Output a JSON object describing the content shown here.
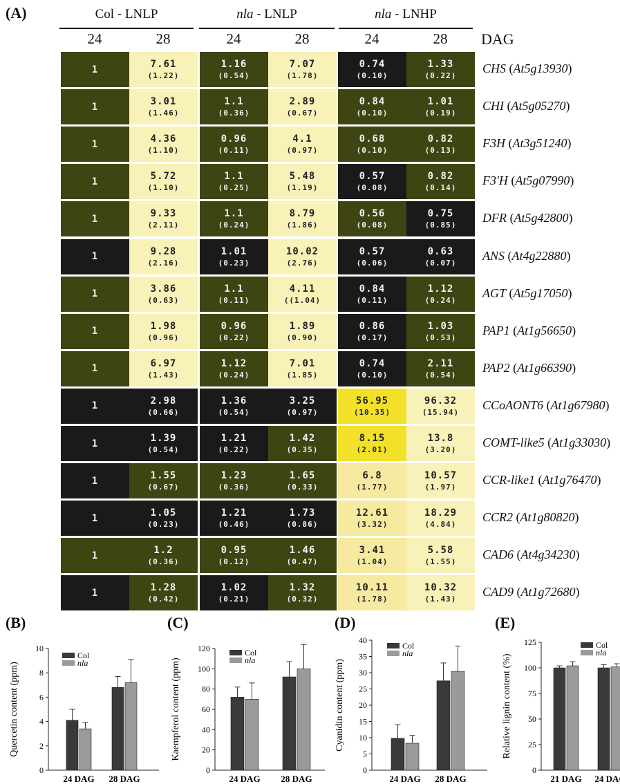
{
  "panel_labels": {
    "a": "(A)",
    "b": "(B)",
    "c": "(C)",
    "d": "(D)",
    "e": "(E)"
  },
  "heatmap": {
    "groups": [
      {
        "prefix": "Col",
        "rest": " - LNLP",
        "italic_prefix": false
      },
      {
        "prefix": "nla",
        "rest": " - LNLP",
        "italic_prefix": true
      },
      {
        "prefix": "nla",
        "rest": " - LNHP",
        "italic_prefix": true
      }
    ],
    "columns": [
      "24",
      "28",
      "24",
      "28",
      "24",
      "28"
    ],
    "unit_label": "DAG",
    "rows": [
      {
        "gene": "CHS",
        "locus": "At5g13930",
        "cells": [
          {
            "v": "1",
            "sd": "",
            "c": "olive"
          },
          {
            "v": "7.61",
            "sd": "(1.22)",
            "c": "pale"
          },
          {
            "v": "1.16",
            "sd": "(0.54)",
            "c": "olive"
          },
          {
            "v": "7.07",
            "sd": "(1.78)",
            "c": "pale"
          },
          {
            "v": "0.74",
            "sd": "(0.10)",
            "c": "dark"
          },
          {
            "v": "1.33",
            "sd": "(0.22)",
            "c": "olive"
          }
        ]
      },
      {
        "gene": "CHI",
        "locus": "At5g05270",
        "cells": [
          {
            "v": "1",
            "sd": "",
            "c": "olive"
          },
          {
            "v": "3.01",
            "sd": "(1.46)",
            "c": "pale"
          },
          {
            "v": "1.1",
            "sd": "(0.36)",
            "c": "olive"
          },
          {
            "v": "2.89",
            "sd": "(0.67)",
            "c": "pale"
          },
          {
            "v": "0.84",
            "sd": "(0.10)",
            "c": "olive"
          },
          {
            "v": "1.01",
            "sd": "(0.19)",
            "c": "olive"
          }
        ]
      },
      {
        "gene": "F3H",
        "locus": "At3g51240",
        "cells": [
          {
            "v": "1",
            "sd": "",
            "c": "olive"
          },
          {
            "v": "4.36",
            "sd": "(1.10)",
            "c": "pale"
          },
          {
            "v": "0.96",
            "sd": "(0.11)",
            "c": "olive"
          },
          {
            "v": "4.1",
            "sd": "(0.97)",
            "c": "pale"
          },
          {
            "v": "0.68",
            "sd": "(0.10)",
            "c": "olive"
          },
          {
            "v": "0.82",
            "sd": "(0.13)",
            "c": "olive"
          }
        ]
      },
      {
        "gene": "F3'H",
        "locus": "At5g07990",
        "cells": [
          {
            "v": "1",
            "sd": "",
            "c": "olive"
          },
          {
            "v": "5.72",
            "sd": "(1.10)",
            "c": "pale"
          },
          {
            "v": "1.1",
            "sd": "(0.25)",
            "c": "olive"
          },
          {
            "v": "5.48",
            "sd": "(1.19)",
            "c": "pale"
          },
          {
            "v": "0.57",
            "sd": "(0.08)",
            "c": "dark"
          },
          {
            "v": "0.82",
            "sd": "(0.14)",
            "c": "olive"
          }
        ]
      },
      {
        "gene": "DFR",
        "locus": "At5g42800",
        "cells": [
          {
            "v": "1",
            "sd": "",
            "c": "olive"
          },
          {
            "v": "9.33",
            "sd": "(2.11)",
            "c": "pale"
          },
          {
            "v": "1.1",
            "sd": "(0.24)",
            "c": "olive"
          },
          {
            "v": "8.79",
            "sd": "(1.86)",
            "c": "pale"
          },
          {
            "v": "0.56",
            "sd": "(0.08)",
            "c": "olive"
          },
          {
            "v": "0.75",
            "sd": "(0.85)",
            "c": "dark"
          }
        ]
      },
      {
        "gene": "ANS",
        "locus": "At4g22880",
        "cells": [
          {
            "v": "1",
            "sd": "",
            "c": "dark"
          },
          {
            "v": "9.28",
            "sd": "(2.16)",
            "c": "pale"
          },
          {
            "v": "1.01",
            "sd": "(0.23)",
            "c": "dark"
          },
          {
            "v": "10.02",
            "sd": "(2.76)",
            "c": "pale"
          },
          {
            "v": "0.57",
            "sd": "(0.06)",
            "c": "dark"
          },
          {
            "v": "0.63",
            "sd": "(0.07)",
            "c": "dark"
          }
        ]
      },
      {
        "gene": "AGT",
        "locus": "At5g17050",
        "cells": [
          {
            "v": "1",
            "sd": "",
            "c": "olive"
          },
          {
            "v": "3.86",
            "sd": "(0.63)",
            "c": "pale"
          },
          {
            "v": "1.1",
            "sd": "(0.11)",
            "c": "olive"
          },
          {
            "v": "4.11",
            "sd": "((1.04)",
            "c": "pale"
          },
          {
            "v": "0.84",
            "sd": "(0.11)",
            "c": "dark"
          },
          {
            "v": "1.12",
            "sd": "(0.24)",
            "c": "olive"
          }
        ]
      },
      {
        "gene": "PAP1",
        "locus": "At1g56650",
        "cells": [
          {
            "v": "1",
            "sd": "",
            "c": "olive"
          },
          {
            "v": "1.98",
            "sd": "(0.96)",
            "c": "pale"
          },
          {
            "v": "0.96",
            "sd": "(0.22)",
            "c": "olive"
          },
          {
            "v": "1.89",
            "sd": "(0.90)",
            "c": "pale"
          },
          {
            "v": "0.86",
            "sd": "(0.17)",
            "c": "dark"
          },
          {
            "v": "1.03",
            "sd": "(0.53)",
            "c": "olive"
          }
        ]
      },
      {
        "gene": "PAP2",
        "locus": "At1g66390",
        "cells": [
          {
            "v": "1",
            "sd": "",
            "c": "olive"
          },
          {
            "v": "6.97",
            "sd": "(1.43)",
            "c": "pale"
          },
          {
            "v": "1.12",
            "sd": "(0.24)",
            "c": "olive"
          },
          {
            "v": "7.01",
            "sd": "(1.85)",
            "c": "pale"
          },
          {
            "v": "0.74",
            "sd": "(0.10)",
            "c": "dark"
          },
          {
            "v": "2.11",
            "sd": "(0.54)",
            "c": "olive"
          }
        ]
      },
      {
        "gene": "CCoAONT6",
        "locus": "At1g67980",
        "cells": [
          {
            "v": "1",
            "sd": "",
            "c": "dark"
          },
          {
            "v": "2.98",
            "sd": "(0.66)",
            "c": "dark"
          },
          {
            "v": "1.36",
            "sd": "(0.54)",
            "c": "dark"
          },
          {
            "v": "3.25",
            "sd": "(0.97)",
            "c": "dark"
          },
          {
            "v": "56.95",
            "sd": "(10.35)",
            "c": "yellow"
          },
          {
            "v": "96.32",
            "sd": "(15.94)",
            "c": "pale"
          }
        ]
      },
      {
        "gene": "COMT-like5",
        "locus": "At1g33030",
        "cells": [
          {
            "v": "1",
            "sd": "",
            "c": "dark"
          },
          {
            "v": "1.39",
            "sd": "(0.54)",
            "c": "dark"
          },
          {
            "v": "1.21",
            "sd": "(0.22)",
            "c": "dark"
          },
          {
            "v": "1.42",
            "sd": "(0.35)",
            "c": "olive"
          },
          {
            "v": "8.15",
            "sd": "(2.01)",
            "c": "yellow"
          },
          {
            "v": "13.8",
            "sd": "(3.20)",
            "c": "pale"
          }
        ]
      },
      {
        "gene": "CCR-like1",
        "locus": "At1g76470",
        "cells": [
          {
            "v": "1",
            "sd": "",
            "c": "dark"
          },
          {
            "v": "1.55",
            "sd": "(0.67)",
            "c": "olive"
          },
          {
            "v": "1.23",
            "sd": "(0.36)",
            "c": "olive"
          },
          {
            "v": "1.65",
            "sd": "(0.33)",
            "c": "olive"
          },
          {
            "v": "6.8",
            "sd": "(1.77)",
            "c": "light"
          },
          {
            "v": "10.57",
            "sd": "(1.97)",
            "c": "pale"
          }
        ]
      },
      {
        "gene": "CCR2",
        "locus": "At1g80820",
        "cells": [
          {
            "v": "1",
            "sd": "",
            "c": "dark"
          },
          {
            "v": "1.05",
            "sd": "(0.23)",
            "c": "dark"
          },
          {
            "v": "1.21",
            "sd": "(0.46)",
            "c": "dark"
          },
          {
            "v": "1.73",
            "sd": "(0.86)",
            "c": "dark"
          },
          {
            "v": "12.61",
            "sd": "(3.32)",
            "c": "light"
          },
          {
            "v": "18.29",
            "sd": "(4.84)",
            "c": "pale"
          }
        ]
      },
      {
        "gene": "CAD6",
        "locus": "At4g34230",
        "cells": [
          {
            "v": "1",
            "sd": "",
            "c": "olive"
          },
          {
            "v": "1.2",
            "sd": "(0.36)",
            "c": "olive"
          },
          {
            "v": "0.95",
            "sd": "(0.12)",
            "c": "olive"
          },
          {
            "v": "1.46",
            "sd": "(0.47)",
            "c": "olive"
          },
          {
            "v": "3.41",
            "sd": "(1.04)",
            "c": "light"
          },
          {
            "v": "5.58",
            "sd": "(1.55)",
            "c": "pale"
          }
        ]
      },
      {
        "gene": "CAD9",
        "locus": "At1g72680",
        "cells": [
          {
            "v": "1",
            "sd": "",
            "c": "dark"
          },
          {
            "v": "1.28",
            "sd": "(0.42)",
            "c": "olive"
          },
          {
            "v": "1.02",
            "sd": "(0.21)",
            "c": "dark"
          },
          {
            "v": "1.32",
            "sd": "(0.32)",
            "c": "olive"
          },
          {
            "v": "10.11",
            "sd": "(1.78)",
            "c": "light"
          },
          {
            "v": "10.32",
            "sd": "(1.43)",
            "c": "pale"
          }
        ]
      }
    ],
    "colors": {
      "dark": "#1a1a1a",
      "olive": "#3e4412",
      "pale": "#f8f1b8",
      "yellow": "#f2e128",
      "light": "#f6eaa0"
    }
  },
  "chart_data": [
    {
      "type": "bar",
      "panel": "(B)",
      "categories": [
        "24 DAG",
        "28 DAG"
      ],
      "series": [
        {
          "name": "Col",
          "values": [
            4.1,
            6.8
          ],
          "errors": [
            0.9,
            0.9
          ]
        },
        {
          "name": "nla",
          "values": [
            3.4,
            7.2
          ],
          "errors": [
            0.5,
            1.9
          ]
        }
      ],
      "ylabel": "Quercetin content (ppm)",
      "ylim": [
        0,
        10
      ],
      "yticks": [
        0,
        2,
        4,
        6,
        8,
        10
      ],
      "legend": "top-left"
    },
    {
      "type": "bar",
      "panel": "(C)",
      "categories": [
        "24 DAG",
        "28 DAG"
      ],
      "series": [
        {
          "name": "Col",
          "values": [
            72,
            92
          ],
          "errors": [
            10,
            15
          ]
        },
        {
          "name": "nla",
          "values": [
            70,
            100
          ],
          "errors": [
            16,
            24
          ]
        }
      ],
      "ylabel": "Kaempferol content (ppm)",
      "ylim": [
        0,
        120
      ],
      "yticks": [
        0,
        20,
        40,
        60,
        80,
        100,
        120
      ],
      "legend": "top-left"
    },
    {
      "type": "bar",
      "panel": "(D)",
      "categories": [
        "24 DAG",
        "28 DAG"
      ],
      "series": [
        {
          "name": "Col",
          "values": [
            9.8,
            27.5
          ],
          "errors": [
            4.2,
            5.5
          ]
        },
        {
          "name": "nla",
          "values": [
            8.3,
            30.4
          ],
          "errors": [
            2.4,
            7.8
          ]
        }
      ],
      "ylabel": "Cyanidin content (ppm)",
      "ylim": [
        0,
        40
      ],
      "yticks": [
        0,
        5,
        10,
        15,
        20,
        25,
        30,
        35,
        40
      ],
      "legend": "top-left"
    },
    {
      "type": "bar",
      "panel": "(E)",
      "categories": [
        "21 DAG",
        "24 DAG"
      ],
      "series": [
        {
          "name": "Col",
          "values": [
            100,
            100
          ],
          "errors": [
            2,
            3
          ]
        },
        {
          "name": "nla",
          "values": [
            102,
            101
          ],
          "errors": [
            4,
            3
          ]
        }
      ],
      "ylabel": "Relative lignin content (%)",
      "ylim": [
        0,
        125
      ],
      "yticks": [
        0,
        25,
        50,
        75,
        100,
        125
      ],
      "legend": "top-right"
    }
  ],
  "bar_colors": {
    "Col": "#3a3a3a",
    "nla": "#9a9a9a"
  }
}
